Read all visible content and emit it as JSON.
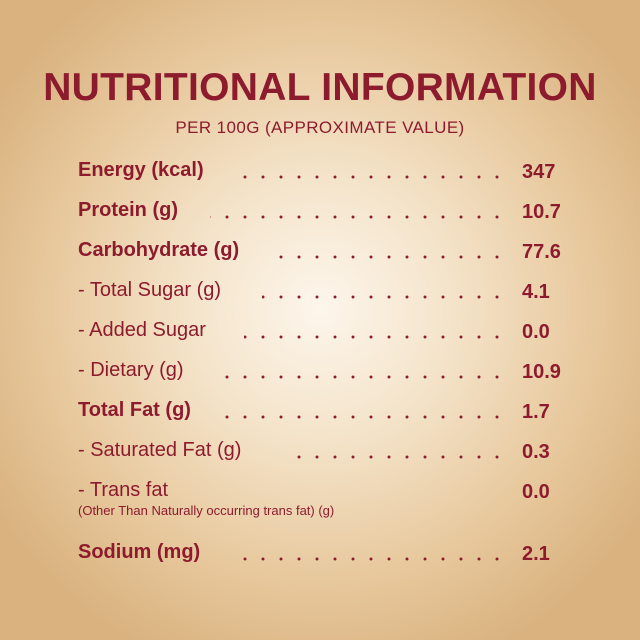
{
  "header": {
    "title": "NUTRITIONAL INFORMATION",
    "subtitle": "PER 100G (APPROXIMATE VALUE)"
  },
  "rows": [
    {
      "label": "Energy (kcal)",
      "value": "347",
      "bold": true
    },
    {
      "label": "Protein (g)",
      "value": "10.7",
      "bold": true
    },
    {
      "label": "Carbohydrate (g)",
      "value": "77.6",
      "bold": true
    },
    {
      "label": "- Total Sugar (g)",
      "value": "4.1",
      "bold": false
    },
    {
      "label": "- Added Sugar",
      "value": "0.0",
      "bold": false
    },
    {
      "label": "- Dietary (g)",
      "value": "10.9",
      "bold": false
    },
    {
      "label": "Total Fat (g)",
      "value": "1.7",
      "bold": true
    },
    {
      "label": "- Saturated Fat (g)",
      "value": "0.3",
      "bold": false
    },
    {
      "label": "- Trans fat",
      "value": "0.0",
      "bold": false
    },
    {
      "label": "Sodium (mg)",
      "value": "2.1",
      "bold": true
    }
  ],
  "trans_fat_note": "(Other Than Naturally occurring trans fat) (g)",
  "colors": {
    "text": "#8d1b2e",
    "background_center": "#fdf6ec",
    "background_edge": "#d9b27f"
  }
}
